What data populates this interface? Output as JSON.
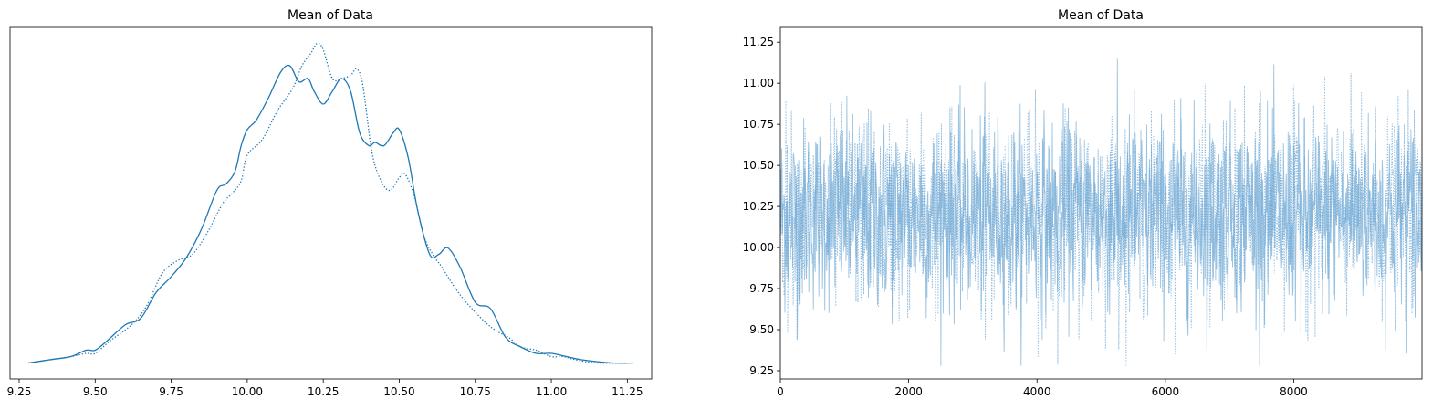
{
  "colors": {
    "line": "#1f77b4",
    "trace": "#6fa8d4",
    "axes": "#000000",
    "background": "#ffffff"
  },
  "chart_data": [
    {
      "type": "line",
      "title": "Mean of Data",
      "xlabel": "",
      "ylabel": "",
      "xlim": [
        9.22,
        11.33
      ],
      "ylim": [
        -0.05,
        1.05
      ],
      "grid": false,
      "xticks": [
        "9.25",
        "9.50",
        "9.75",
        "10.00",
        "10.25",
        "10.50",
        "10.75",
        "11.00",
        "11.25"
      ],
      "yticks": [],
      "series": [
        {
          "style": "solid",
          "x": [
            9.28,
            9.35,
            9.42,
            9.47,
            9.5,
            9.54,
            9.6,
            9.65,
            9.7,
            9.75,
            9.8,
            9.85,
            9.9,
            9.93,
            9.96,
            9.98,
            10.0,
            10.03,
            10.07,
            10.11,
            10.14,
            10.17,
            10.2,
            10.22,
            10.25,
            10.28,
            10.31,
            10.34,
            10.37,
            10.4,
            10.42,
            10.45,
            10.48,
            10.5,
            10.53,
            10.56,
            10.6,
            10.63,
            10.66,
            10.7,
            10.75,
            10.8,
            10.85,
            10.9,
            10.95,
            11.0,
            11.05,
            11.1,
            11.2,
            11.27
          ],
          "y": [
            0.0,
            0.01,
            0.02,
            0.04,
            0.04,
            0.07,
            0.12,
            0.14,
            0.22,
            0.27,
            0.33,
            0.42,
            0.54,
            0.56,
            0.6,
            0.68,
            0.73,
            0.76,
            0.83,
            0.91,
            0.93,
            0.88,
            0.89,
            0.85,
            0.81,
            0.85,
            0.89,
            0.85,
            0.72,
            0.68,
            0.69,
            0.68,
            0.72,
            0.73,
            0.64,
            0.48,
            0.34,
            0.34,
            0.36,
            0.3,
            0.19,
            0.17,
            0.08,
            0.05,
            0.03,
            0.03,
            0.02,
            0.01,
            0.0,
            0.0
          ]
        },
        {
          "style": "dotted",
          "x": [
            9.28,
            9.35,
            9.42,
            9.47,
            9.5,
            9.55,
            9.62,
            9.67,
            9.72,
            9.77,
            9.82,
            9.87,
            9.92,
            9.95,
            9.98,
            10.0,
            10.05,
            10.1,
            10.15,
            10.18,
            10.21,
            10.23,
            10.25,
            10.28,
            10.31,
            10.34,
            10.36,
            10.38,
            10.41,
            10.44,
            10.47,
            10.5,
            10.52,
            10.55,
            10.58,
            10.61,
            10.64,
            10.68,
            10.72,
            10.78,
            10.82,
            10.86,
            10.9,
            10.95,
            11.0,
            11.04,
            11.08,
            11.15,
            11.25
          ],
          "y": [
            0.0,
            0.01,
            0.02,
            0.03,
            0.03,
            0.07,
            0.12,
            0.18,
            0.28,
            0.32,
            0.34,
            0.41,
            0.5,
            0.53,
            0.57,
            0.65,
            0.7,
            0.79,
            0.86,
            0.93,
            0.97,
            1.0,
            0.98,
            0.89,
            0.89,
            0.9,
            0.92,
            0.87,
            0.66,
            0.57,
            0.54,
            0.58,
            0.59,
            0.52,
            0.4,
            0.34,
            0.3,
            0.24,
            0.19,
            0.13,
            0.1,
            0.08,
            0.05,
            0.04,
            0.02,
            0.02,
            0.01,
            0.0,
            0.0
          ]
        }
      ]
    },
    {
      "type": "line",
      "title": "Mean of Data",
      "xlabel": "",
      "ylabel": "",
      "xlim": [
        0,
        9999
      ],
      "ylim": [
        9.2,
        11.34
      ],
      "grid": false,
      "xticks": [
        "0",
        "2000",
        "4000",
        "6000",
        "8000"
      ],
      "yticks": [
        "9.25",
        "9.50",
        "9.75",
        "10.00",
        "10.25",
        "10.50",
        "10.75",
        "11.00",
        "11.25"
      ],
      "mean": 10.2,
      "band": [
        9.62,
        10.78
      ],
      "series": [
        {
          "style": "solid",
          "n_draws": 10000
        },
        {
          "style": "dotted",
          "n_draws": 10000
        }
      ]
    }
  ]
}
